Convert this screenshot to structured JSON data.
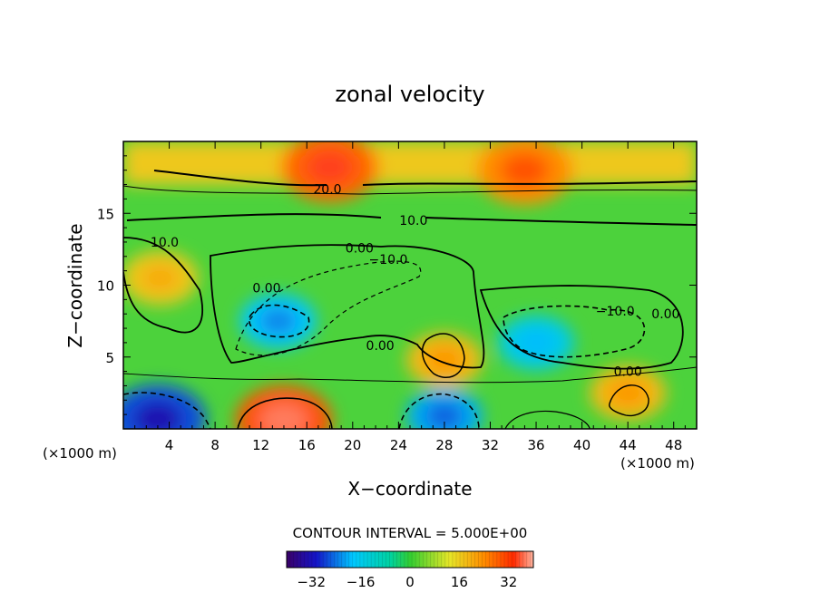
{
  "chart_data": {
    "type": "heatmap",
    "title": "zonal velocity",
    "xlabel": "X−coordinate",
    "ylabel": "Z−coordinate",
    "x_unit_left": "(×1000 m)",
    "x_unit_right": "(×1000 m)",
    "xlim": [
      0,
      50
    ],
    "ylim": [
      0,
      20
    ],
    "x_ticks": [
      4,
      8,
      12,
      16,
      20,
      24,
      28,
      32,
      36,
      40,
      44,
      48
    ],
    "y_ticks": [
      5,
      10,
      15
    ],
    "contour_interval_text": "CONTOUR INTERVAL = 5.000E+00",
    "contour_labels": [
      {
        "text": "20.0",
        "x": 17.8,
        "z": 16.7
      },
      {
        "text": "10.0",
        "x": 25.3,
        "z": 14.5
      },
      {
        "text": "10.0",
        "x": 3.6,
        "z": 13.0
      },
      {
        "text": "0.00",
        "x": 20.6,
        "z": 12.6
      },
      {
        "text": "−10.0",
        "x": 23.1,
        "z": 11.8
      },
      {
        "text": "0.00",
        "x": 12.5,
        "z": 9.8
      },
      {
        "text": "−10.0",
        "x": 42.9,
        "z": 8.2
      },
      {
        "text": "0.00",
        "x": 47.3,
        "z": 8.0
      },
      {
        "text": "0.00",
        "x": 22.4,
        "z": 5.8
      },
      {
        "text": "0.00",
        "x": 44.0,
        "z": 4.0
      }
    ],
    "colorbar": {
      "ticks": [
        -32,
        -16,
        0,
        16,
        32
      ],
      "tick_labels": [
        "−32",
        "−16",
        "0",
        "16",
        "32"
      ],
      "range": [
        -40,
        40
      ]
    },
    "velocity_field": [
      {
        "x": 18,
        "z": 18.2,
        "value": 28
      },
      {
        "x": 35,
        "z": 18.0,
        "value": 24
      },
      {
        "x": 3.2,
        "z": 10.5,
        "value": 16
      },
      {
        "x": 13.5,
        "z": 7.5,
        "value": -18
      },
      {
        "x": 36,
        "z": 6.0,
        "value": -15
      },
      {
        "x": 28,
        "z": 4.8,
        "value": 18
      },
      {
        "x": 3,
        "z": 0.7,
        "value": -26
      },
      {
        "x": 28,
        "z": 0.9,
        "value": -20
      },
      {
        "x": 14,
        "z": 0.6,
        "value": 30
      },
      {
        "x": 44,
        "z": 2.5,
        "value": 18
      }
    ]
  }
}
